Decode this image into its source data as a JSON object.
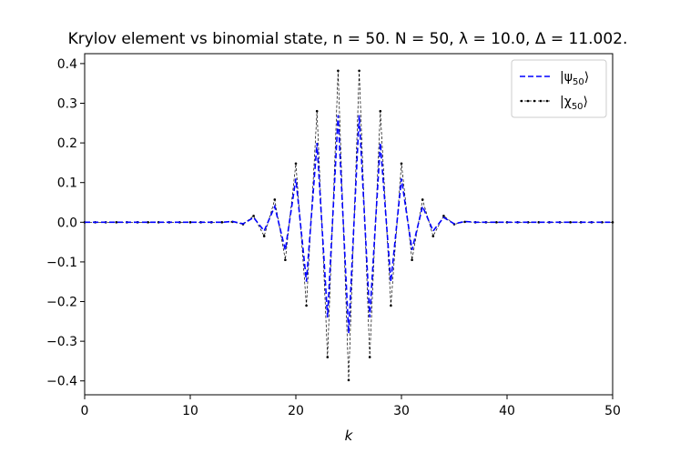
{
  "chart_data": {
    "type": "line",
    "title": "Krylov element vs binomial state, n = 50. N = 50, λ = 10.0, Δ = 11.002.",
    "xlabel": "k",
    "ylabel": "",
    "xlim": [
      0,
      50
    ],
    "ylim": [
      -0.435,
      0.425
    ],
    "grid": false,
    "legend_position": "top-right",
    "x_ticks": [
      0,
      10,
      20,
      30,
      40,
      50
    ],
    "x_tick_labels": [
      "0",
      "10",
      "20",
      "30",
      "40",
      "50"
    ],
    "y_ticks": [
      -0.4,
      -0.3,
      -0.2,
      -0.1,
      0.0,
      0.1,
      0.2,
      0.3,
      0.4
    ],
    "y_tick_labels": [
      "−0.4",
      "−0.3",
      "−0.2",
      "−0.1",
      "0.0",
      "0.1",
      "0.2",
      "0.3",
      "0.4"
    ],
    "x": [
      0,
      1,
      2,
      3,
      4,
      5,
      6,
      7,
      8,
      9,
      10,
      11,
      12,
      13,
      14,
      15,
      16,
      17,
      18,
      19,
      20,
      21,
      22,
      23,
      24,
      25,
      26,
      27,
      28,
      29,
      30,
      31,
      32,
      33,
      34,
      35,
      36,
      37,
      38,
      39,
      40,
      41,
      42,
      43,
      44,
      45,
      46,
      47,
      48,
      49,
      50
    ],
    "series": [
      {
        "name": "|ψ50⟩",
        "name_base": "|ψ",
        "name_sub": "50",
        "name_end": "⟩",
        "color": "#0000ff",
        "style": "dashed",
        "values": [
          0,
          0,
          0,
          0,
          0,
          0,
          0,
          0,
          0,
          0,
          0,
          0,
          0,
          0,
          0.002,
          -0.004,
          0.012,
          -0.022,
          0.04,
          -0.07,
          0.11,
          -0.15,
          0.2,
          -0.24,
          0.27,
          -0.28,
          0.27,
          -0.24,
          0.2,
          -0.15,
          0.11,
          -0.07,
          0.04,
          -0.022,
          0.012,
          -0.004,
          0.002,
          0,
          0,
          0,
          0,
          0,
          0,
          0,
          0,
          0,
          0,
          0,
          0,
          0,
          0
        ]
      },
      {
        "name": "|χ50⟩",
        "name_base": "|χ",
        "name_sub": "50",
        "name_end": "⟩",
        "color": "#000000",
        "style": "dashed-dots",
        "values": [
          0,
          0,
          0,
          0,
          0,
          0,
          0,
          0,
          0,
          0,
          0,
          0,
          0,
          0,
          0.001,
          -0.005,
          0.016,
          -0.035,
          0.057,
          -0.095,
          0.148,
          -0.21,
          0.28,
          -0.34,
          0.382,
          -0.398,
          0.382,
          -0.34,
          0.28,
          -0.21,
          0.148,
          -0.095,
          0.057,
          -0.035,
          0.016,
          -0.005,
          0.001,
          0,
          0,
          0,
          0,
          0,
          0,
          0,
          0,
          0,
          0,
          0,
          0,
          0,
          0
        ]
      }
    ]
  }
}
